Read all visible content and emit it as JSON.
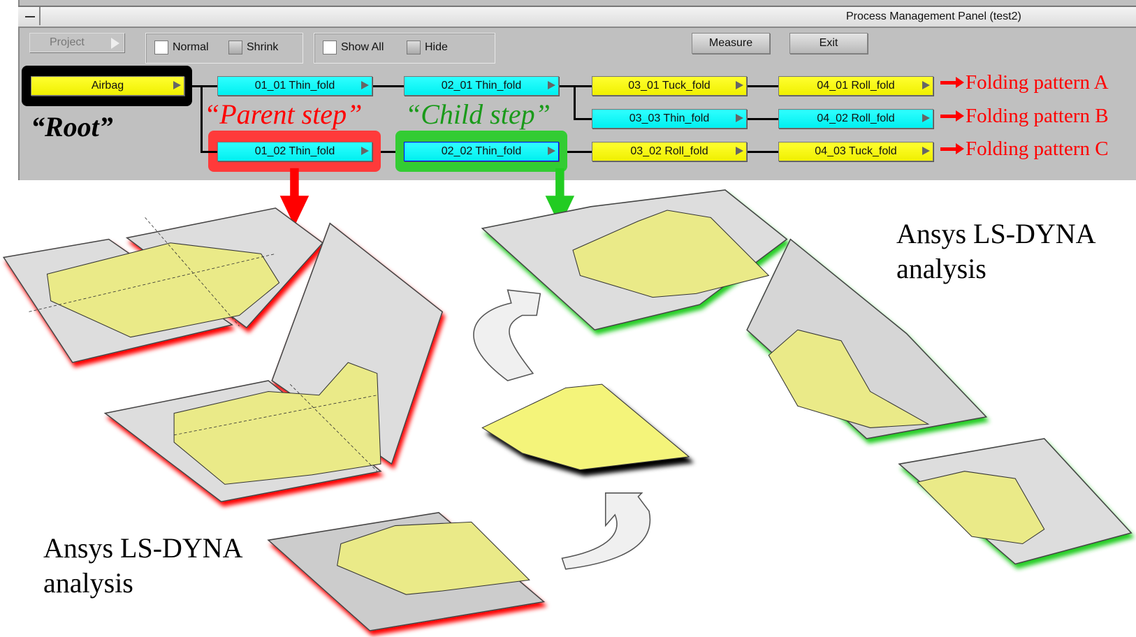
{
  "window": {
    "title": "Process Management Panel (test2)"
  },
  "toolbar": {
    "project_label": "Project",
    "normal_label": "Normal",
    "shrink_label": "Shrink",
    "show_all_label": "Show All",
    "hide_label": "Hide",
    "measure_label": "Measure",
    "exit_label": "Exit"
  },
  "tree": {
    "root": "Airbag",
    "nodes": [
      {
        "label": "01_01 Thin_fold",
        "color": "cyan"
      },
      {
        "label": "02_01 Thin_fold",
        "color": "cyan"
      },
      {
        "label": "03_01 Tuck_fold",
        "color": "yellow"
      },
      {
        "label": "04_01 Roll_fold",
        "color": "yellow"
      },
      {
        "label": "03_03 Thin_fold",
        "color": "cyan"
      },
      {
        "label": "04_02 Roll_fold",
        "color": "cyan"
      },
      {
        "label": "01_02 Thin_fold",
        "color": "cyan"
      },
      {
        "label": "02_02 Thin_fold",
        "color": "cyan"
      },
      {
        "label": "03_02 Roll_fold",
        "color": "yellow"
      },
      {
        "label": "04_03 Tuck_fold",
        "color": "yellow"
      }
    ]
  },
  "annotations": {
    "root": "“Root”",
    "parent": "“Parent step”",
    "child": "“Child step”",
    "pattern_a": "Folding pattern A",
    "pattern_b": "Folding pattern B",
    "pattern_c": "Folding pattern C",
    "ansys_right_1": "Ansys LS-DYNA",
    "ansys_right_2": "analysis",
    "ansys_left_1": "Ansys LS-DYNA",
    "ansys_left_2": "analysis"
  },
  "colors": {
    "parent": "#ff3a3a",
    "child": "#33cc33",
    "root": "#000000",
    "node_yellow": "#ffff00",
    "node_cyan": "#00ffff"
  }
}
